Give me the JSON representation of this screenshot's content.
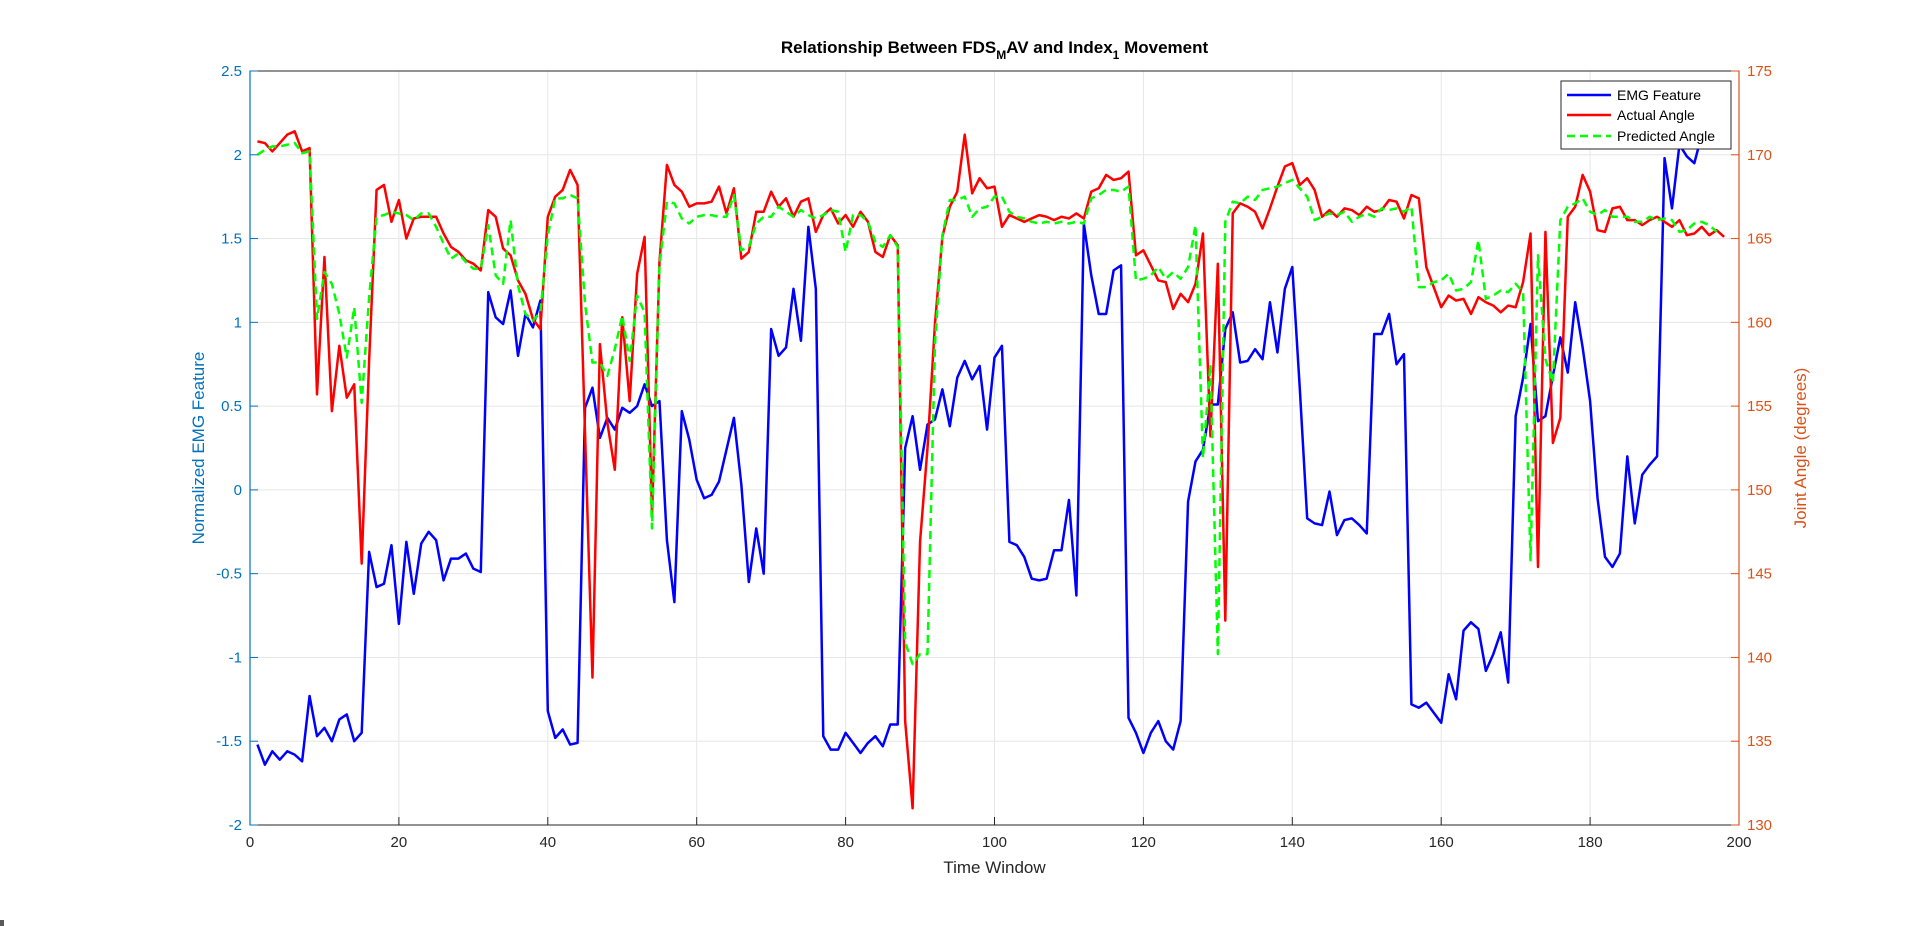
{
  "chart_data": {
    "type": "line",
    "title_parts": {
      "pre": "Relationship Between FDS",
      "sub1": "M",
      "mid": "AV and Index",
      "sub2": "1",
      "post": " Movement"
    },
    "xlabel": "Time Window",
    "ylabel_left": "Normalized EMG Feature",
    "ylabel_right": "Joint Angle (degrees)",
    "xlim": [
      0,
      200
    ],
    "ylim_left": [
      -2,
      2.5
    ],
    "ylim_right": [
      130,
      175
    ],
    "x_ticks": [
      "0",
      "20",
      "40",
      "60",
      "80",
      "100",
      "120",
      "140",
      "160",
      "180",
      "200"
    ],
    "y_left_ticks": [
      "-2",
      "-1.5",
      "-1",
      "-0.5",
      "0",
      "0.5",
      "1",
      "1.5",
      "2",
      "2.5"
    ],
    "y_right_ticks": [
      "130",
      "135",
      "140",
      "145",
      "150",
      "155",
      "160",
      "165",
      "170",
      "175"
    ],
    "grid": true,
    "legend_position": "top-right",
    "colors": {
      "left_axis": "#0072BD",
      "right_axis": "#D95319",
      "emg": "#0000FF",
      "actual": "#FF0000",
      "predicted": "#00FF00"
    },
    "series": [
      {
        "name": "EMG Feature",
        "axis": "left",
        "style": "solid",
        "values": [
          -1.52,
          -1.64,
          -1.56,
          -1.61,
          -1.56,
          -1.58,
          -1.62,
          -1.23,
          -1.47,
          -1.42,
          -1.5,
          -1.37,
          -1.34,
          -1.5,
          -1.45,
          -0.37,
          -0.58,
          -0.56,
          -0.33,
          -0.8,
          -0.31,
          -0.62,
          -0.32,
          -0.25,
          -0.3,
          -0.54,
          -0.41,
          -0.41,
          -0.38,
          -0.47,
          -0.49,
          1.18,
          1.03,
          0.99,
          1.19,
          0.8,
          1.05,
          0.97,
          1.13,
          -1.32,
          -1.48,
          -1.43,
          -1.52,
          -1.51,
          0.49,
          0.61,
          0.31,
          0.43,
          0.36,
          0.49,
          0.46,
          0.5,
          0.63,
          0.5,
          0.53,
          -0.3,
          -0.67,
          0.47,
          0.3,
          0.06,
          -0.05,
          -0.03,
          0.05,
          0.24,
          0.43,
          0.03,
          -0.55,
          -0.23,
          -0.5,
          0.96,
          0.8,
          0.85,
          1.2,
          0.89,
          1.57,
          1.2,
          -1.47,
          -1.55,
          -1.55,
          -1.45,
          -1.51,
          -1.57,
          -1.51,
          -1.47,
          -1.53,
          -1.4,
          -1.4,
          0.25,
          0.44,
          0.12,
          0.39,
          0.42,
          0.6,
          0.38,
          0.67,
          0.77,
          0.66,
          0.74,
          0.36,
          0.79,
          0.86,
          -0.31,
          -0.33,
          -0.4,
          -0.53,
          -0.54,
          -0.53,
          -0.36,
          -0.36,
          -0.06,
          -0.63,
          1.59,
          1.28,
          1.05,
          1.05,
          1.31,
          1.34,
          -1.36,
          -1.45,
          -1.57,
          -1.45,
          -1.38,
          -1.5,
          -1.55,
          -1.38,
          -0.07,
          0.17,
          0.24,
          0.51,
          0.51,
          0.96,
          1.06,
          0.76,
          0.77,
          0.84,
          0.78,
          1.12,
          0.82,
          1.2,
          1.33,
          0.61,
          -0.17,
          -0.2,
          -0.21,
          -0.01,
          -0.27,
          -0.18,
          -0.17,
          -0.21,
          -0.26,
          0.93,
          0.93,
          1.05,
          0.75,
          0.81,
          -1.28,
          -1.3,
          -1.27,
          -1.33,
          -1.39,
          -1.1,
          -1.25,
          -0.84,
          -0.79,
          -0.83,
          -1.08,
          -0.98,
          -0.85,
          -1.15,
          0.44,
          0.67,
          0.99,
          0.41,
          0.44,
          0.68,
          0.91,
          0.7,
          1.12,
          0.85,
          0.53,
          -0.05,
          -0.4,
          -0.46,
          -0.38,
          0.2,
          -0.2,
          0.09,
          0.15,
          0.2,
          1.98,
          1.68,
          2.06,
          1.99,
          1.95,
          2.12
        ]
      },
      {
        "name": "Actual Angle",
        "axis": "right",
        "style": "solid",
        "values": [
          170.8,
          170.7,
          170.2,
          170.7,
          171.2,
          171.4,
          170.2,
          170.4,
          155.7,
          163.9,
          154.7,
          158.6,
          155.5,
          156.3,
          145.6,
          157.7,
          167.9,
          168.2,
          166,
          167.3,
          165,
          166.2,
          166.3,
          166.3,
          166.3,
          165.3,
          164.5,
          164.2,
          163.7,
          163.5,
          163.1,
          166.7,
          166.3,
          164.4,
          164,
          162.5,
          161.7,
          160.2,
          159.6,
          166.3,
          167.5,
          167.9,
          169.1,
          168.2,
          153.4,
          138.8,
          158.7,
          154,
          151.2,
          160.3,
          155.3,
          162.9,
          165.1,
          148.5,
          163.6,
          169.4,
          168.2,
          167.8,
          166.9,
          167.1,
          167.1,
          167.2,
          168.1,
          166.5,
          168,
          163.8,
          164.2,
          166.6,
          166.6,
          167.8,
          166.9,
          167.4,
          166.3,
          167.2,
          167.4,
          165.4,
          166.4,
          166.8,
          165.9,
          166.4,
          165.7,
          166.6,
          166,
          164.2,
          163.9,
          165.2,
          164.6,
          136.2,
          131,
          146.9,
          152.5,
          159.9,
          165.1,
          166.9,
          167.8,
          171.2,
          167.7,
          168.6,
          168,
          168.1,
          165.7,
          166.4,
          166.2,
          166,
          166.2,
          166.4,
          166.3,
          166.1,
          166.3,
          166.2,
          166.5,
          166.2,
          167.8,
          168,
          168.8,
          168.5,
          168.6,
          169,
          164,
          164.3,
          163.4,
          162.5,
          162.4,
          160.8,
          161.7,
          161.2,
          162.3,
          165.3,
          153.2,
          163.5,
          142.2,
          166.5,
          167.1,
          166.9,
          166.6,
          165.6,
          166.8,
          168.1,
          169.3,
          169.5,
          168.2,
          168.6,
          167.9,
          166.3,
          166.7,
          166.3,
          166.8,
          166.7,
          166.4,
          166.9,
          166.6,
          166.7,
          167.3,
          167.2,
          166.2,
          167.6,
          167.4,
          163.3,
          162.1,
          160.9,
          161.6,
          161.3,
          161.4,
          160.5,
          161.5,
          161.2,
          161,
          160.6,
          161,
          160.9,
          162.4,
          165.3,
          145.4,
          165.4,
          152.8,
          154.3,
          166.3,
          166.9,
          168.8,
          167.8,
          165.5,
          165.4,
          166.8,
          166.9,
          166.1,
          166.1,
          165.8,
          166.1,
          166.3,
          166,
          165.7,
          166.1,
          165.2,
          165.3,
          165.7,
          165.2,
          165.5,
          165.1
        ]
      },
      {
        "name": "Predicted Angle",
        "axis": "right",
        "style": "dashed",
        "values": [
          170,
          170.3,
          170.5,
          170.5,
          170.6,
          170.7,
          170.1,
          170.2,
          160.2,
          163,
          162.3,
          160.5,
          157.9,
          160.9,
          155.2,
          161.5,
          166.3,
          166.4,
          166.6,
          166.5,
          166.4,
          166.1,
          166.5,
          166.5,
          165.7,
          164.7,
          163.8,
          164.1,
          163.6,
          163.2,
          163.2,
          165.8,
          162.8,
          162.3,
          166.1,
          162.2,
          160.5,
          160.1,
          160.6,
          165.2,
          167.4,
          167.4,
          167.6,
          167.4,
          161.1,
          157.6,
          157.6,
          156.8,
          158.4,
          160.4,
          157.7,
          161.6,
          160.6,
          147.7,
          163.4,
          167.2,
          167.1,
          166.2,
          165.9,
          166.3,
          166.4,
          166.4,
          166.3,
          166.3,
          167.6,
          164.3,
          164.5,
          165.9,
          166.3,
          166.3,
          166.9,
          166.6,
          166.3,
          166.7,
          166.4,
          166.2,
          166.4,
          166.7,
          166.6,
          164.2,
          166.4,
          166.4,
          166,
          164.8,
          164.5,
          165.2,
          164.5,
          140.9,
          139.6,
          140.2,
          140.2,
          158.7,
          165.2,
          167.3,
          167.3,
          167.5,
          166.3,
          166.8,
          166.9,
          167.5,
          167.5,
          166.6,
          166.3,
          166.2,
          166,
          165.9,
          166,
          165.9,
          166,
          165.9,
          166,
          165.9,
          167.4,
          167.6,
          167.9,
          167.9,
          167.8,
          168.1,
          162.5,
          162.6,
          162.8,
          163.3,
          162.6,
          163,
          162.6,
          163.3,
          165.8,
          151.9,
          157.5,
          140.2,
          166,
          167.2,
          167.1,
          167.5,
          167.3,
          167.9,
          168,
          168.1,
          168.3,
          168.5,
          168,
          167.5,
          166.1,
          166.3,
          166.5,
          166.4,
          166.6,
          166,
          166.3,
          166.5,
          166.3,
          166.8,
          166.7,
          166.8,
          166.6,
          166.9,
          162.1,
          162.1,
          162.4,
          162.5,
          162.9,
          161.9,
          162,
          162.4,
          164.9,
          161.4,
          161.6,
          161.9,
          161.8,
          162.3,
          161.8,
          145.8,
          164,
          157.8,
          156.4,
          166.1,
          166.9,
          167.1,
          167.4,
          166.6,
          166.4,
          166.7,
          166.3,
          166.3,
          166.3,
          166,
          166,
          166.3,
          166.1,
          166.2,
          166.1,
          165.4,
          165.5,
          165.9,
          166,
          165.8,
          165.4
        ]
      }
    ]
  }
}
